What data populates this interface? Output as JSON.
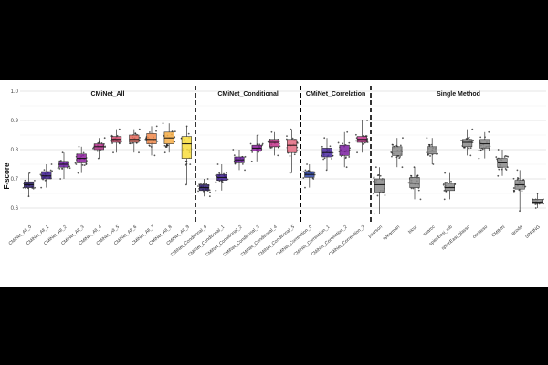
{
  "chart_data": {
    "type": "box",
    "ylabel": "F-score",
    "ylim": [
      0.55,
      1.0
    ],
    "yticks": [
      0.6,
      0.7,
      0.8,
      0.9,
      1.0
    ],
    "ytick_labels": [
      "0.6",
      "0.7",
      "0.8",
      "0.9",
      "1.0"
    ],
    "grid": true,
    "groups": [
      {
        "title": "CMiNet_All",
        "methods": [
          {
            "name": "CMiNet_All_0",
            "median": 0.68,
            "q1": 0.67,
            "q3": 0.69,
            "min": 0.64,
            "max": 0.72,
            "color": "#2a1b6b"
          },
          {
            "name": "CMiNet_All_1",
            "median": 0.71,
            "q1": 0.7,
            "q3": 0.725,
            "min": 0.67,
            "max": 0.75,
            "color": "#3b1b8c"
          },
          {
            "name": "CMiNet_All_2",
            "median": 0.75,
            "q1": 0.74,
            "q3": 0.76,
            "min": 0.7,
            "max": 0.79,
            "color": "#6a1aa0"
          },
          {
            "name": "CMiNet_All_3",
            "median": 0.77,
            "q1": 0.755,
            "q3": 0.785,
            "min": 0.72,
            "max": 0.81,
            "color": "#8c1d9c"
          },
          {
            "name": "CMiNet_All_4",
            "median": 0.81,
            "q1": 0.8,
            "q3": 0.82,
            "min": 0.77,
            "max": 0.84,
            "color": "#b2318a"
          },
          {
            "name": "CMiNet_All_5",
            "median": 0.835,
            "q1": 0.825,
            "q3": 0.845,
            "min": 0.79,
            "max": 0.87,
            "color": "#cf4a6f"
          },
          {
            "name": "CMiNet_All_6",
            "median": 0.835,
            "q1": 0.825,
            "q3": 0.85,
            "min": 0.79,
            "max": 0.87,
            "color": "#e3685a"
          },
          {
            "name": "CMiNet_All_7",
            "median": 0.835,
            "q1": 0.82,
            "q3": 0.855,
            "min": 0.78,
            "max": 0.88,
            "color": "#f08a4b"
          },
          {
            "name": "CMiNet_All_8",
            "median": 0.84,
            "q1": 0.82,
            "q3": 0.86,
            "min": 0.79,
            "max": 0.89,
            "color": "#f6ad45"
          },
          {
            "name": "CMiNet_All_9",
            "median": 0.82,
            "q1": 0.77,
            "q3": 0.845,
            "min": 0.68,
            "max": 0.88,
            "color": "#f8dd3c"
          }
        ]
      },
      {
        "title": "CMiNet_Conditional",
        "methods": [
          {
            "name": "CMiNet_Conditional_0",
            "median": 0.67,
            "q1": 0.66,
            "q3": 0.68,
            "min": 0.64,
            "max": 0.7,
            "color": "#2a1b6b"
          },
          {
            "name": "CMiNet_Conditional_1",
            "median": 0.705,
            "q1": 0.695,
            "q3": 0.715,
            "min": 0.66,
            "max": 0.75,
            "color": "#3b1b8c"
          },
          {
            "name": "CMiNet_Conditional_2",
            "median": 0.765,
            "q1": 0.755,
            "q3": 0.775,
            "min": 0.73,
            "max": 0.8,
            "color": "#6a1aa0"
          },
          {
            "name": "CMiNet_Conditional_3",
            "median": 0.805,
            "q1": 0.795,
            "q3": 0.815,
            "min": 0.76,
            "max": 0.85,
            "color": "#8c1d9c"
          },
          {
            "name": "CMiNet_Conditional_4",
            "median": 0.825,
            "q1": 0.81,
            "q3": 0.835,
            "min": 0.78,
            "max": 0.86,
            "color": "#c2318a"
          },
          {
            "name": "CMiNet_Conditional_5",
            "median": 0.815,
            "q1": 0.79,
            "q3": 0.835,
            "min": 0.72,
            "max": 0.87,
            "color": "#e36a80"
          }
        ]
      },
      {
        "title": "CMiNet_Correlation",
        "methods": [
          {
            "name": "CMiNet_Correlation_0",
            "median": 0.715,
            "q1": 0.705,
            "q3": 0.725,
            "min": 0.67,
            "max": 0.75,
            "color": "#2a3f9c"
          },
          {
            "name": "CMiNet_Correlation_1",
            "median": 0.79,
            "q1": 0.775,
            "q3": 0.805,
            "min": 0.73,
            "max": 0.84,
            "color": "#4a2aa0"
          },
          {
            "name": "CMiNet_Correlation_2",
            "median": 0.795,
            "q1": 0.78,
            "q3": 0.815,
            "min": 0.74,
            "max": 0.86,
            "color": "#7a1da0"
          },
          {
            "name": "CMiNet_Correlation_3",
            "median": 0.835,
            "q1": 0.825,
            "q3": 0.845,
            "min": 0.79,
            "max": 0.9,
            "color": "#c0338c"
          }
        ]
      },
      {
        "title": "Single Method",
        "methods": [
          {
            "name": "pearson",
            "median": 0.68,
            "q1": 0.655,
            "q3": 0.7,
            "min": 0.58,
            "max": 0.74,
            "color": "#8a8a8a"
          },
          {
            "name": "spearman",
            "median": 0.795,
            "q1": 0.78,
            "q3": 0.81,
            "min": 0.74,
            "max": 0.84,
            "color": "#8a8a8a"
          },
          {
            "name": "bicor",
            "median": 0.685,
            "q1": 0.67,
            "q3": 0.705,
            "min": 0.63,
            "max": 0.74,
            "color": "#8a8a8a"
          },
          {
            "name": "sparcc",
            "median": 0.795,
            "q1": 0.785,
            "q3": 0.81,
            "min": 0.75,
            "max": 0.84,
            "color": "#8a8a8a"
          },
          {
            "name": "spiecEasi_mb",
            "median": 0.67,
            "q1": 0.66,
            "q3": 0.685,
            "min": 0.63,
            "max": 0.72,
            "color": "#8a8a8a"
          },
          {
            "name": "spiecEasi_glasso",
            "median": 0.825,
            "q1": 0.81,
            "q3": 0.835,
            "min": 0.78,
            "max": 0.87,
            "color": "#8a8a8a"
          },
          {
            "name": "ccclasso",
            "median": 0.82,
            "q1": 0.805,
            "q3": 0.835,
            "min": 0.77,
            "max": 0.86,
            "color": "#8a8a8a"
          },
          {
            "name": "CMIMN",
            "median": 0.755,
            "q1": 0.74,
            "q3": 0.77,
            "min": 0.71,
            "max": 0.8,
            "color": "#8a8a8a"
          },
          {
            "name": "gcoda",
            "median": 0.68,
            "q1": 0.665,
            "q3": 0.695,
            "min": 0.59,
            "max": 0.73,
            "color": "#8a8a8a"
          },
          {
            "name": "SPRING",
            "median": 0.62,
            "q1": 0.615,
            "q3": 0.63,
            "min": 0.6,
            "max": 0.65,
            "color": "#8a8a8a"
          }
        ]
      }
    ]
  }
}
